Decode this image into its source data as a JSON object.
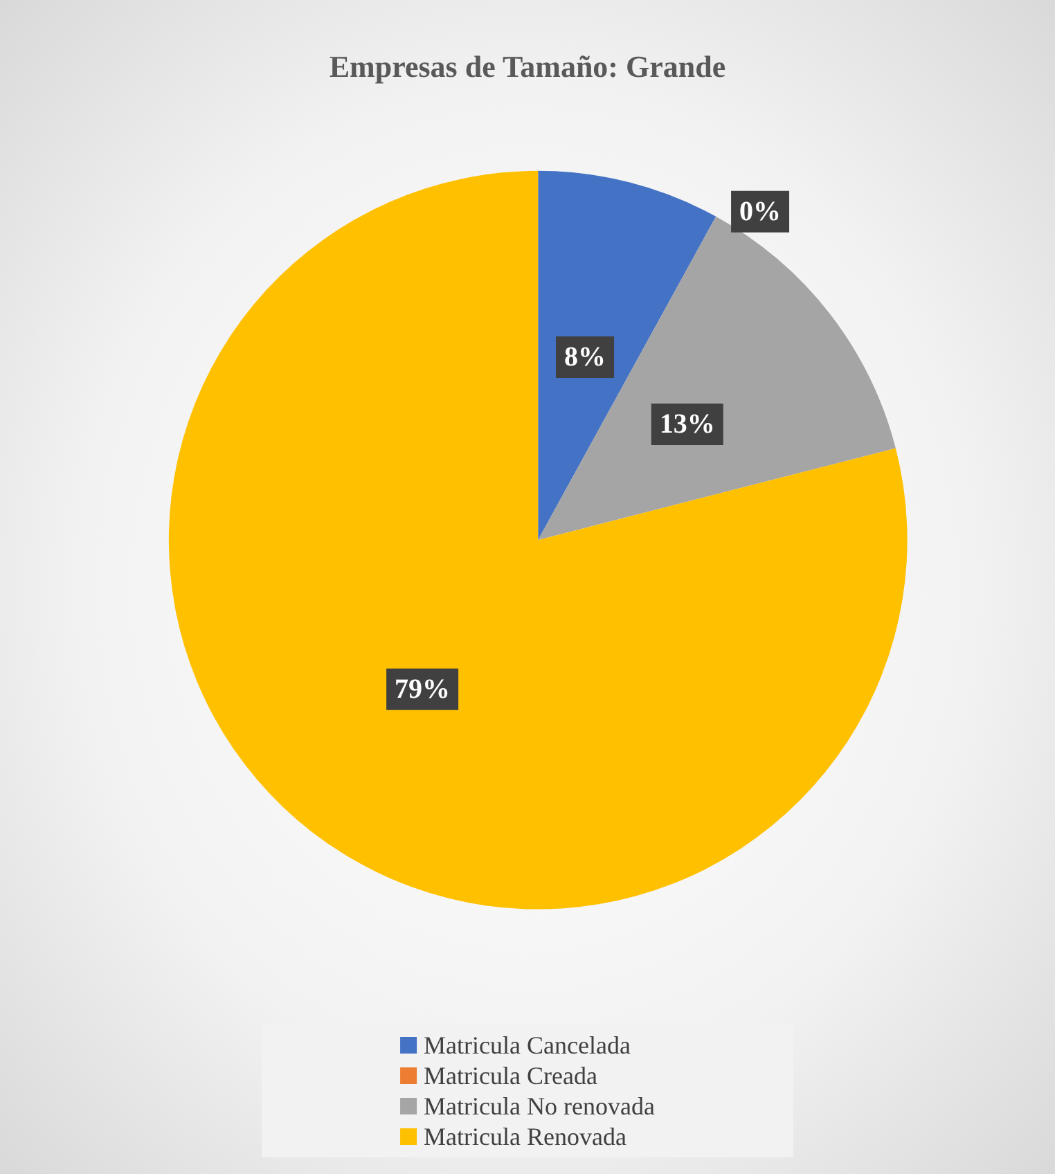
{
  "chart_data": {
    "type": "pie",
    "title": "Empresas de Tamaño: Grande",
    "categories": [
      "Matricula Cancelada",
      "Matricula Creada",
      "Matricula No renovada",
      "Matricula Renovada"
    ],
    "values": [
      8,
      0,
      13,
      79
    ],
    "colors": [
      "#4472c4",
      "#ed7d31",
      "#a5a5a5",
      "#ffc000"
    ],
    "value_labels": [
      "8%",
      "0%",
      "13%",
      "79%"
    ],
    "legend": "bottom"
  }
}
